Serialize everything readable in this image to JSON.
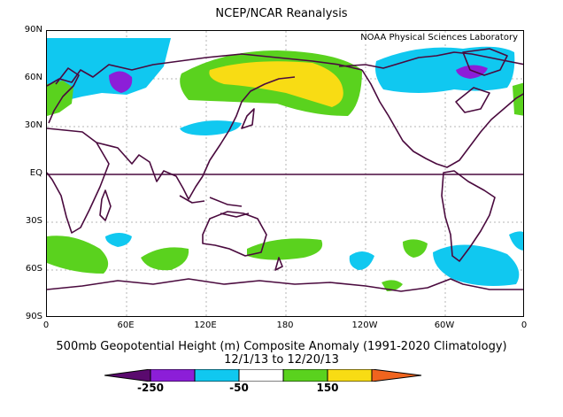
{
  "header": {
    "title": "NCEP/NCAR Reanalysis"
  },
  "map": {
    "credit": "NOAA Physical Sciences Laboratory",
    "y_ticks": [
      "90N",
      "60N",
      "30N",
      "EQ",
      "30S",
      "60S",
      "90S"
    ],
    "x_ticks": [
      "0",
      "60E",
      "120E",
      "180",
      "120W",
      "60W",
      "0"
    ],
    "colors": {
      "coast": "#4a0a3e",
      "blue": "#10c8f0",
      "green": "#5ad21e",
      "yellow": "#f8dc14",
      "purple": "#8c1ed8",
      "grid": "#b4b4b4"
    }
  },
  "caption": {
    "line1": "500mb Geopotential Height (m) Composite Anomaly (1991-2020 Climatology)",
    "line2": "12/1/13   to 12/20/13"
  },
  "colorbar": {
    "labels": [
      "-250",
      "-50",
      "150"
    ],
    "colors": [
      "#5a0a6e",
      "#8c1ed8",
      "#10c8f0",
      "#ffffff",
      "#5ad21e",
      "#f8dc14",
      "#f0641e"
    ]
  }
}
